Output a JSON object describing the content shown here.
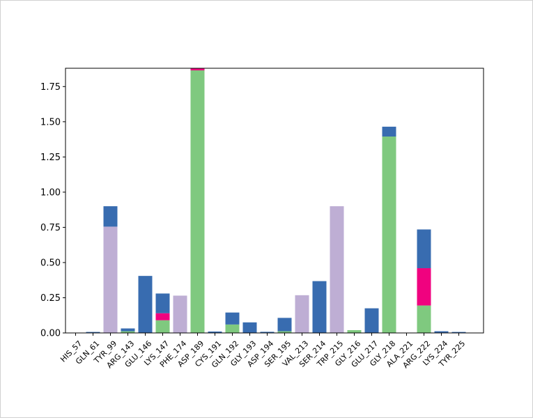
{
  "chart_data": {
    "type": "bar",
    "stacked": true,
    "title": "",
    "xlabel": "",
    "ylabel": "",
    "ylim": [
      0,
      1.88
    ],
    "yticks": [
      "0.00",
      "0.25",
      "0.50",
      "0.75",
      "1.00",
      "1.25",
      "1.50",
      "1.75"
    ],
    "ytick_values": [
      0,
      0.25,
      0.5,
      0.75,
      1.0,
      1.25,
      1.5,
      1.75
    ],
    "grid": false,
    "legend": "none",
    "categories": [
      "HIS_57",
      "GLN_61",
      "TYR_99",
      "ARG_143",
      "GLU_146",
      "LYS_147",
      "PHE_174",
      "ASP_189",
      "CYS_191",
      "GLN_192",
      "GLY_193",
      "ASP_194",
      "SER_195",
      "VAL_213",
      "SER_214",
      "TRP_215",
      "GLY_216",
      "GLU_217",
      "GLY_218",
      "ALA_221",
      "ARG_222",
      "LYS_224",
      "TYR_225"
    ],
    "series": [
      {
        "color": "#7fc97f",
        "values": [
          0,
          0,
          0,
          0.012,
          0,
          0.09,
          0,
          1.865,
          0,
          0.06,
          0,
          0,
          0.012,
          0,
          0,
          0,
          0.02,
          0,
          1.395,
          0,
          0.195,
          0,
          0
        ]
      },
      {
        "color": "#beaed4",
        "values": [
          0,
          0,
          0.755,
          0,
          0,
          0,
          0.265,
          0,
          0,
          0,
          0,
          0,
          0,
          0.268,
          0,
          0.9,
          0,
          0,
          0,
          0,
          0,
          0,
          0
        ]
      },
      {
        "color": "#f0027f",
        "values": [
          0,
          0,
          0,
          0,
          0,
          0.05,
          0,
          0.015,
          0,
          0,
          0,
          0,
          0,
          0,
          0,
          0,
          0,
          0,
          0,
          0,
          0.265,
          0,
          0
        ]
      },
      {
        "color": "#386cb0",
        "values": [
          0,
          0.007,
          0.145,
          0.02,
          0.405,
          0.14,
          0,
          0,
          0.01,
          0.085,
          0.075,
          0.008,
          0.095,
          0,
          0.368,
          0,
          0,
          0.175,
          0.07,
          0,
          0.275,
          0.012,
          0.007
        ]
      }
    ]
  }
}
